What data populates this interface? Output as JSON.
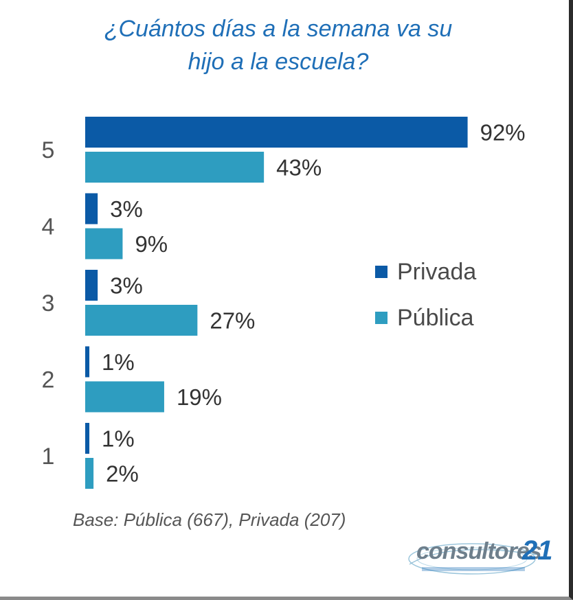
{
  "chart_data": {
    "type": "bar",
    "orientation": "horizontal",
    "title": "¿Cuántos días a la semana va su hijo a la escuela?",
    "categories": [
      "5",
      "4",
      "3",
      "2",
      "1"
    ],
    "series": [
      {
        "name": "Privada",
        "color": "#0b5aa6",
        "values": [
          92,
          3,
          3,
          1,
          1
        ],
        "labels": [
          "92%",
          "3%",
          "3%",
          "1%",
          "1%"
        ]
      },
      {
        "name": "Pública",
        "color": "#2e9dc0",
        "values": [
          43,
          9,
          27,
          19,
          2
        ],
        "labels": [
          "43%",
          "9%",
          "27%",
          "19%",
          "2%"
        ]
      }
    ],
    "xlim": [
      0,
      100
    ],
    "grid": false,
    "legend_position": "right"
  },
  "note": "Base: Pública (667), Privada (207)",
  "logo": {
    "text": "consultores",
    "number": "21"
  }
}
